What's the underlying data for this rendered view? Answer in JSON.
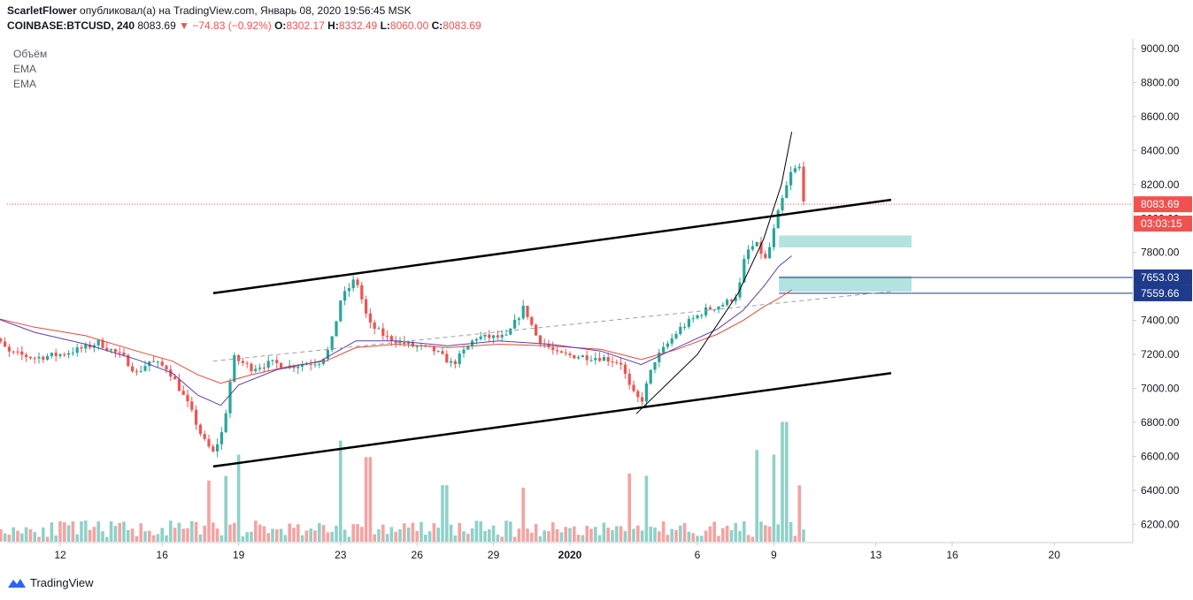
{
  "header": {
    "author": "ScarletFlower",
    "published_text": "опубликовал(а) на TradingView.com, Январь 08, 2020 19:56:45 MSK",
    "symbol": "COINBASE:BTCUSD, 240",
    "price": "8083.69",
    "arrow": "▼",
    "change": "−74.83 (−0.92%)",
    "o_label": "O:",
    "o_value": "8302.17",
    "h_label": "H:",
    "h_value": "8332.49",
    "l_label": "L:",
    "l_value": "8060.00",
    "c_label": "C:",
    "c_value": "8083.69"
  },
  "indicators": [
    "Объём",
    "EMA",
    "EMA"
  ],
  "brand": "TradingView",
  "colors": {
    "up": "#26a69a",
    "down": "#ef5350",
    "vol_up": "#8fd1c9",
    "vol_down": "#f5a3a1",
    "ema_fast": "#5b3fa8",
    "ema_slow": "#e04a3a",
    "zone": "#b2e3de",
    "level_line": "#1e3a8a",
    "price_line": "#ef5350"
  },
  "chart_data": {
    "type": "candlestick",
    "title": "COINBASE:BTCUSD, 240",
    "ylim": [
      6120,
      9050
    ],
    "y_ticks": [
      "9000.00",
      "8800.00",
      "8600.00",
      "8400.00",
      "8200.00",
      "8000.00",
      "7800.00",
      "7600.00",
      "7400.00",
      "7200.00",
      "7000.00",
      "6800.00",
      "6600.00",
      "6400.00",
      "6200.00"
    ],
    "x_ticks": [
      "12",
      "16",
      "19",
      "23",
      "26",
      "29",
      "2020",
      "6",
      "9",
      "13",
      "16",
      "20"
    ],
    "x_tick_days": [
      12,
      16,
      19,
      23,
      26,
      29,
      32,
      37,
      40,
      44,
      47,
      51
    ],
    "price_labels": [
      {
        "text": "8083.69",
        "value": 8083.69,
        "kind": "last"
      },
      {
        "text": "03:03:15",
        "value": 7970,
        "kind": "countdown"
      },
      {
        "text": "7653.03",
        "value": 7653.03,
        "kind": "level"
      },
      {
        "text": "7559.66",
        "value": 7559.66,
        "kind": "level"
      }
    ],
    "last_price": 8083.69,
    "levels": [
      7653.03,
      7559.66
    ],
    "channel": {
      "upper": [
        [
          18.0,
          7560
        ],
        [
          44.6,
          8110
        ]
      ],
      "lower": [
        [
          18.0,
          6540
        ],
        [
          44.6,
          7090
        ]
      ]
    },
    "dashed_trend": [
      [
        18.0,
        7160
      ],
      [
        44.6,
        7570
      ]
    ],
    "curve": [
      [
        34.6,
        6850
      ],
      [
        37.0,
        7200
      ],
      [
        38.6,
        7560
      ],
      [
        39.6,
        7880
      ],
      [
        40.3,
        8200
      ],
      [
        40.7,
        8510
      ]
    ],
    "zones": [
      {
        "x": [
          40.2,
          45.4
        ],
        "y": [
          7830,
          7900
        ]
      },
      {
        "x": [
          40.2,
          45.4
        ],
        "y": [
          7570,
          7660
        ]
      }
    ],
    "close_path": [
      [
        9.0,
        7370
      ],
      [
        10.0,
        7210
      ],
      [
        11.0,
        7180
      ],
      [
        12.0,
        7200
      ],
      [
        13.0,
        7240
      ],
      [
        13.5,
        7270
      ],
      [
        14.5,
        7180
      ],
      [
        15.0,
        7090
      ],
      [
        15.5,
        7160
      ],
      [
        16.2,
        7120
      ],
      [
        16.6,
        7020
      ],
      [
        17.1,
        6880
      ],
      [
        17.6,
        6700
      ],
      [
        18.0,
        6620
      ],
      [
        18.4,
        6760
      ],
      [
        18.8,
        7180
      ],
      [
        19.5,
        7120
      ],
      [
        20.3,
        7150
      ],
      [
        21.0,
        7130
      ],
      [
        22.2,
        7160
      ],
      [
        22.6,
        7240
      ],
      [
        23.0,
        7520
      ],
      [
        23.6,
        7650
      ],
      [
        24.1,
        7380
      ],
      [
        24.8,
        7300
      ],
      [
        25.8,
        7250
      ],
      [
        26.6,
        7230
      ],
      [
        27.4,
        7140
      ],
      [
        28.3,
        7300
      ],
      [
        29.5,
        7300
      ],
      [
        30.2,
        7480
      ],
      [
        30.7,
        7300
      ],
      [
        31.5,
        7200
      ],
      [
        32.3,
        7190
      ],
      [
        33.3,
        7180
      ],
      [
        34.0,
        7150
      ],
      [
        34.4,
        6980
      ],
      [
        34.8,
        6920
      ],
      [
        35.3,
        7160
      ],
      [
        36.3,
        7350
      ],
      [
        37.3,
        7460
      ],
      [
        38.1,
        7500
      ],
      [
        38.6,
        7560
      ],
      [
        38.9,
        7800
      ],
      [
        39.3,
        7850
      ],
      [
        39.7,
        7750
      ],
      [
        40.2,
        8050
      ],
      [
        40.7,
        8280
      ],
      [
        41.0,
        8300
      ],
      [
        41.2,
        8083.69
      ]
    ],
    "ema_fast": [
      [
        9.0,
        7440
      ],
      [
        11.0,
        7330
      ],
      [
        13.0,
        7260
      ],
      [
        15.0,
        7170
      ],
      [
        16.4,
        7090
      ],
      [
        17.4,
        6960
      ],
      [
        18.3,
        6900
      ],
      [
        19.0,
        7020
      ],
      [
        20.5,
        7110
      ],
      [
        22.2,
        7160
      ],
      [
        23.6,
        7280
      ],
      [
        25.2,
        7280
      ],
      [
        27.2,
        7250
      ],
      [
        29.2,
        7280
      ],
      [
        31.2,
        7260
      ],
      [
        33.2,
        7220
      ],
      [
        34.8,
        7140
      ],
      [
        36.2,
        7240
      ],
      [
        37.8,
        7350
      ],
      [
        38.8,
        7460
      ],
      [
        39.6,
        7600
      ],
      [
        40.2,
        7720
      ],
      [
        40.7,
        7780
      ]
    ],
    "ema_slow": [
      [
        9.0,
        7430
      ],
      [
        11.0,
        7360
      ],
      [
        13.0,
        7310
      ],
      [
        15.0,
        7220
      ],
      [
        16.4,
        7160
      ],
      [
        17.4,
        7080
      ],
      [
        18.3,
        7030
      ],
      [
        19.5,
        7080
      ],
      [
        21.0,
        7130
      ],
      [
        22.4,
        7160
      ],
      [
        23.6,
        7240
      ],
      [
        25.2,
        7260
      ],
      [
        27.2,
        7240
      ],
      [
        29.2,
        7260
      ],
      [
        31.2,
        7250
      ],
      [
        33.2,
        7230
      ],
      [
        34.8,
        7170
      ],
      [
        36.2,
        7230
      ],
      [
        37.8,
        7320
      ],
      [
        38.8,
        7400
      ],
      [
        39.6,
        7480
      ],
      [
        40.2,
        7530
      ],
      [
        40.7,
        7580
      ]
    ],
    "volume": {
      "peaks": [
        {
          "day": 17.8,
          "value": 5.2,
          "up": false
        },
        {
          "day": 18.5,
          "value": 5.6,
          "up": true
        },
        {
          "day": 19.0,
          "value": 7.4,
          "up": true
        },
        {
          "day": 23.0,
          "value": 8.6,
          "up": true
        },
        {
          "day": 24.1,
          "value": 7.2,
          "up": false
        },
        {
          "day": 27.1,
          "value": 4.8,
          "up": true
        },
        {
          "day": 30.2,
          "value": 4.6,
          "up": false
        },
        {
          "day": 34.3,
          "value": 5.8,
          "up": false
        },
        {
          "day": 35.0,
          "value": 5.6,
          "up": true
        },
        {
          "day": 39.3,
          "value": 7.8,
          "up": true
        },
        {
          "day": 40.0,
          "value": 7.4,
          "up": true
        },
        {
          "day": 40.4,
          "value": 10.2,
          "up": true
        },
        {
          "day": 41.0,
          "value": 4.8,
          "up": false
        }
      ]
    }
  }
}
